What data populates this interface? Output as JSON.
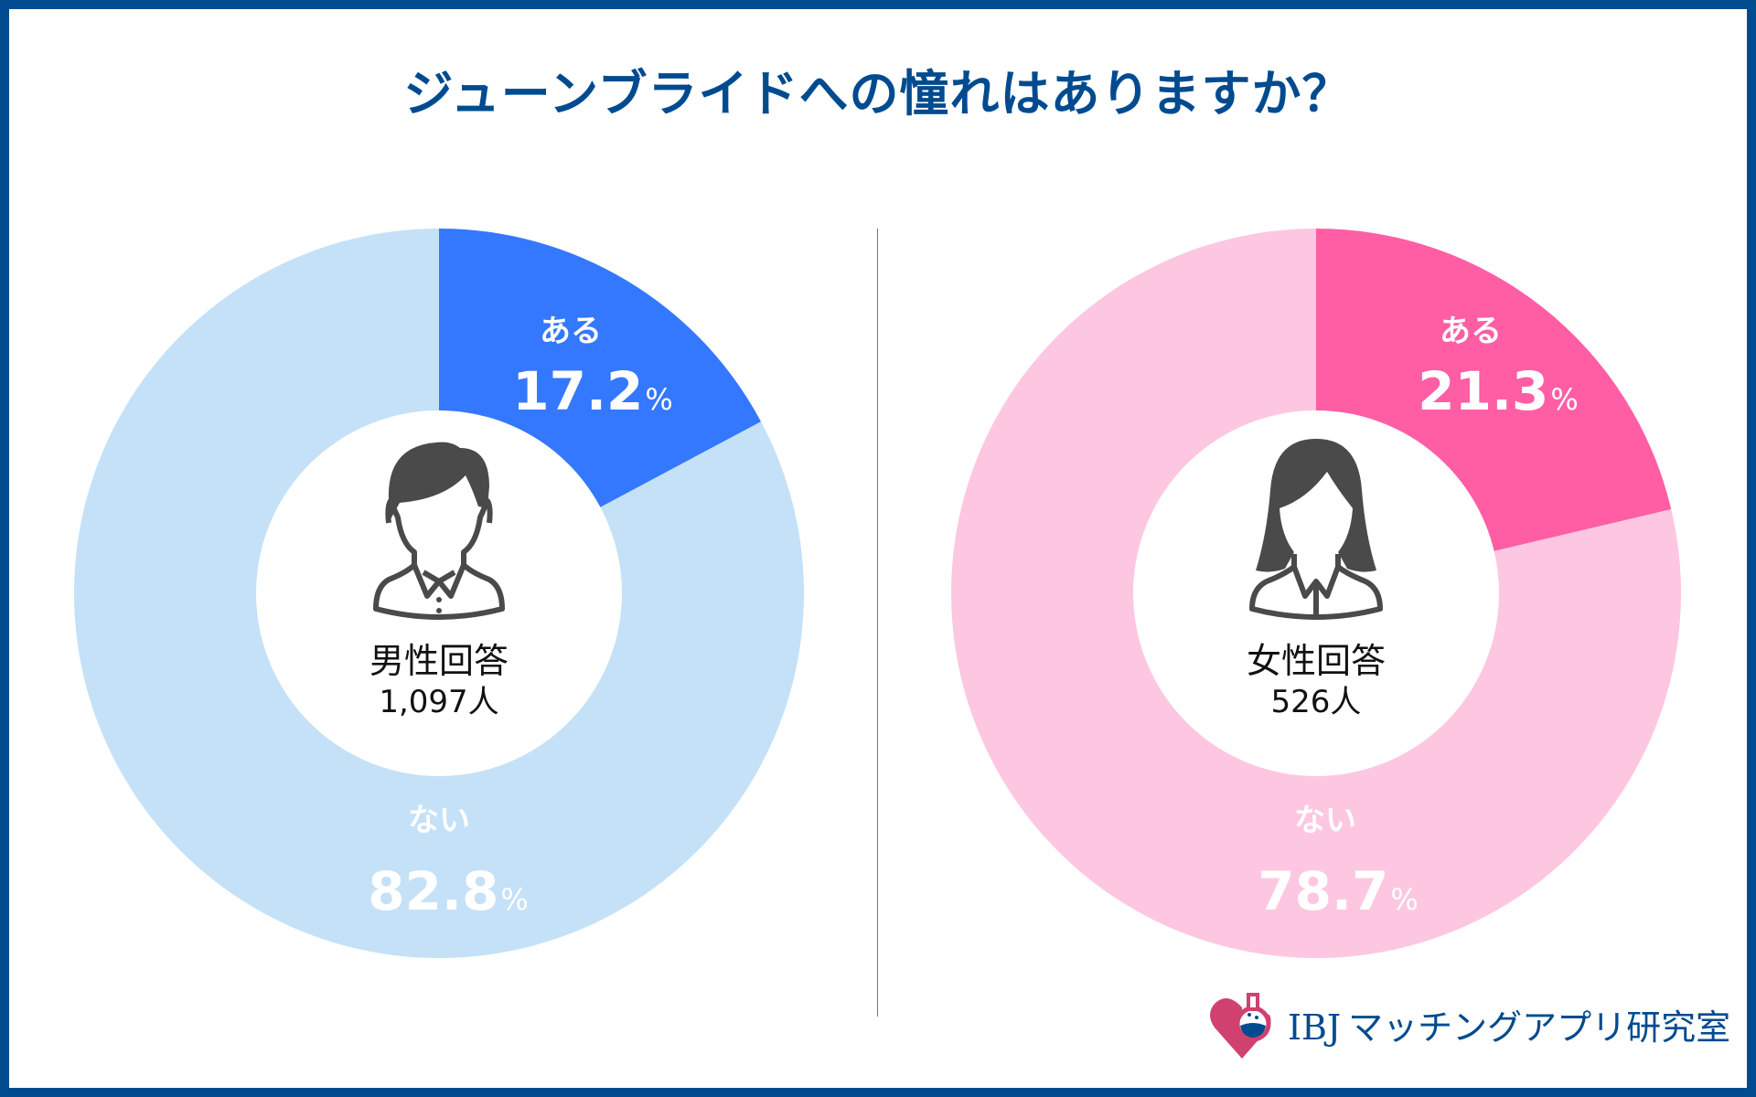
{
  "title": "ジューンブライドへの憧れはありますか？",
  "chart_data": [
    {
      "type": "pie",
      "donut": true,
      "group": "男性回答",
      "respondents": "1,097人",
      "categories": [
        "ある",
        "ない"
      ],
      "values": [
        17.2,
        82.8
      ],
      "labels": [
        "17.2",
        "82.8"
      ],
      "unit": "%",
      "colors": [
        "#3478FF",
        "#C5E1F7"
      ]
    },
    {
      "type": "pie",
      "donut": true,
      "group": "女性回答",
      "respondents": "526人",
      "categories": [
        "ある",
        "ない"
      ],
      "values": [
        21.3,
        78.7
      ],
      "labels": [
        "21.3",
        "78.7"
      ],
      "unit": "%",
      "colors": [
        "#FF5EA5",
        "#FDC7E1"
      ]
    }
  ],
  "logo": {
    "brand": "IBJ",
    "name": "マッチングアプリ研究室"
  },
  "colors": {
    "frame": "#004B8F",
    "icon": "#4A4A4A",
    "logo_heart": "#D0416F"
  }
}
